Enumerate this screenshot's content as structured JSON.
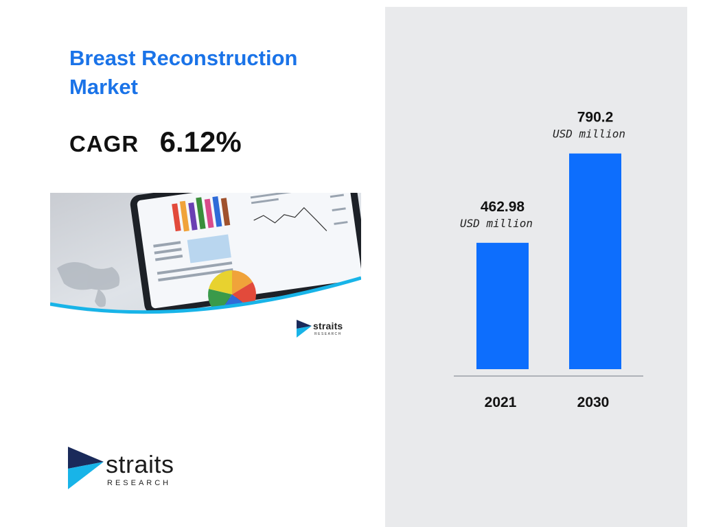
{
  "title": "Breast Reconstruction Market",
  "cagr": {
    "label": "CAGR",
    "value": "6.12%"
  },
  "brand": {
    "name": "straits",
    "sub": "RESEARCH",
    "colors": {
      "dark": "#1a2a5a",
      "cyan": "#18b4e8"
    }
  },
  "hero_image": {
    "description_icon": "dashboard-tablet-illustration"
  },
  "colors": {
    "title": "#1a73e8",
    "bar": "#0d6efd",
    "panel": "#e9eaec",
    "baseline": "#9aa0a6",
    "text": "#111111"
  },
  "chart_data": {
    "type": "bar",
    "categories": [
      "2021",
      "2030"
    ],
    "values": [
      462.98,
      790.2
    ],
    "value_labels": [
      "462.98",
      "790.2"
    ],
    "unit_label": "USD million",
    "ylim": [
      0,
      900
    ],
    "grid": false,
    "legend": "none"
  }
}
